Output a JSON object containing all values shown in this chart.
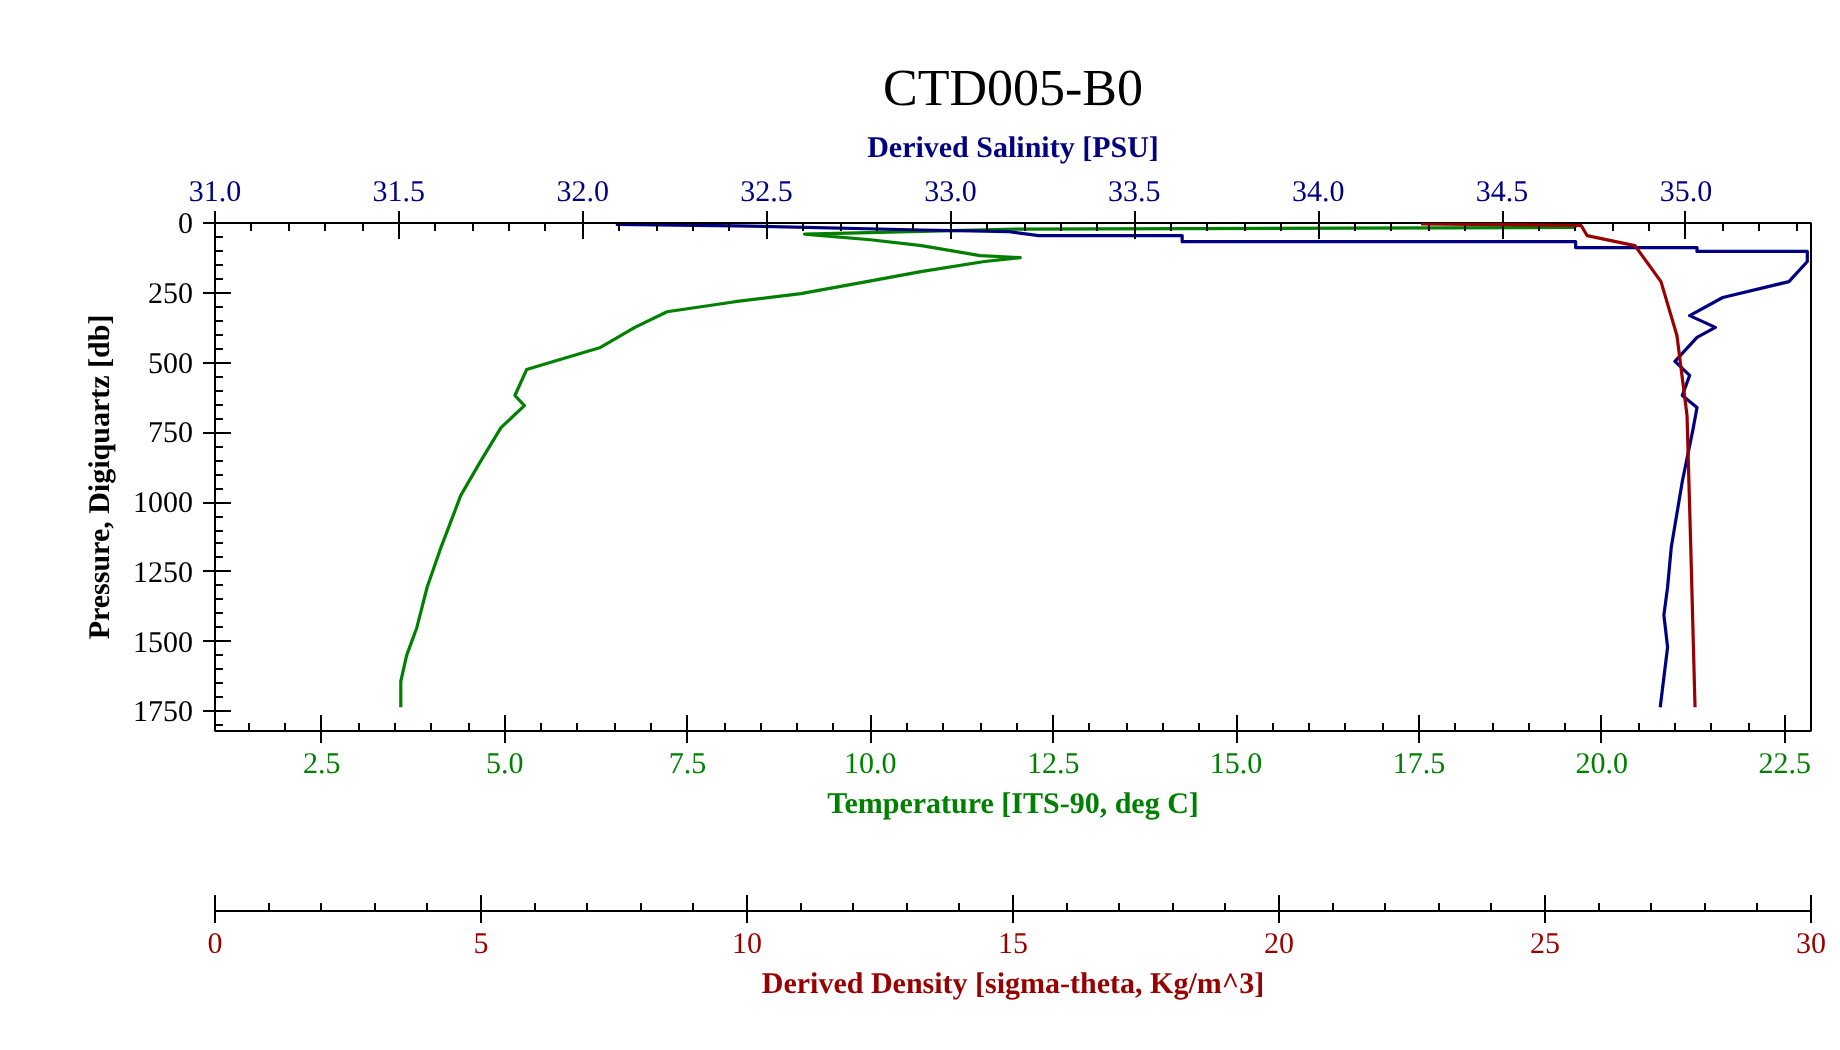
{
  "chart_data": [
    {
      "type": "line",
      "title": "CTD005-B0",
      "ylabel": "Pressure, Digiquartz [db]",
      "xlabel": "Temperature [ITS-90, deg C]",
      "x2label": "Derived Salinity [PSU]",
      "xlim": [
        1.04,
        22.86
      ],
      "xticks": [
        {
          "value": 2.5,
          "label": "2.5"
        },
        {
          "value": 5,
          "label": "5.0"
        },
        {
          "value": 7.5,
          "label": "7.5"
        },
        {
          "value": 10,
          "label": "10.0"
        },
        {
          "value": 12.5,
          "label": "12.5"
        },
        {
          "value": 15,
          "label": "15.0"
        },
        {
          "value": 17.5,
          "label": "17.5"
        },
        {
          "value": 20,
          "label": "20.0"
        },
        {
          "value": 22.5,
          "label": "22.5"
        }
      ],
      "x2lim": [
        31.0,
        35.34
      ],
      "x2ticks": [
        {
          "value": 31,
          "label": "31.0"
        },
        {
          "value": 31.5,
          "label": "31.5"
        },
        {
          "value": 32,
          "label": "32.0"
        },
        {
          "value": 32.5,
          "label": "32.5"
        },
        {
          "value": 33,
          "label": "33.0"
        },
        {
          "value": 33.5,
          "label": "33.5"
        },
        {
          "value": 34,
          "label": "34.0"
        },
        {
          "value": 34.5,
          "label": "34.5"
        },
        {
          "value": 35,
          "label": "35.0"
        }
      ],
      "ylim": [
        1820,
        0
      ],
      "yticks": [
        0,
        250,
        500,
        750,
        1000,
        1250,
        1500,
        1750
      ],
      "series": [
        {
          "color": "#008000",
          "x": [
            19.7,
            19.6,
            12.0,
            9.1,
            10.0,
            10.7,
            11.5,
            12.05,
            11.56,
            10.69,
            9.95,
            9.05,
            8.15,
            7.22,
            6.78,
            6.31,
            5.85,
            5.3,
            5.14,
            5.27,
            4.95,
            4.67,
            4.4,
            4.13,
            3.94,
            3.8,
            3.66,
            3.58,
            3.58
          ],
          "values": [
            5,
            16,
            22,
            40,
            60,
            81,
            117,
            124,
            138,
            174,
            210,
            253,
            282,
            318,
            374,
            446,
            482,
            525,
            618,
            654,
            733,
            854,
            976,
            1162,
            1305,
            1449,
            1549,
            1642,
            1735
          ]
        },
        {
          "color": "#000080",
          "axis": "x2",
          "x": [
            32.09,
            32.42,
            32.92,
            33.16,
            33.24,
            33.63,
            33.63,
            34.7,
            34.7,
            35.03,
            35.03,
            35.33,
            35.33,
            35.28,
            35.1,
            35.01,
            35.08,
            35.03,
            34.97,
            35.01,
            34.99,
            35.03,
            35.02,
            34.99,
            34.96,
            34.95,
            34.94,
            34.95,
            34.93
          ],
          "values": [
            5,
            10,
            25,
            31,
            45,
            45,
            67,
            67,
            88,
            88,
            102,
            102,
            138,
            210,
            267,
            332,
            374,
            410,
            496,
            546,
            618,
            661,
            733,
            926,
            1162,
            1305,
            1405,
            1520,
            1735
          ]
        }
      ]
    },
    {
      "type": "line",
      "xlabel": "Derived Density [sigma-theta, Kg/m^3]",
      "xlim": [
        0,
        30
      ],
      "xticks": [
        0,
        5,
        10,
        15,
        20,
        25,
        30
      ],
      "ylim": [
        1820,
        0
      ],
      "tick_labels": "x",
      "series": [
        {
          "color": "#990000",
          "x": [
            22.67,
            25.68,
            25.79,
            26.69,
            27.18,
            27.48,
            27.67,
            27.74,
            27.82
          ],
          "values": [
            3,
            9,
            45,
            81,
            210,
            403,
            690,
            1162,
            1735
          ]
        }
      ]
    }
  ]
}
